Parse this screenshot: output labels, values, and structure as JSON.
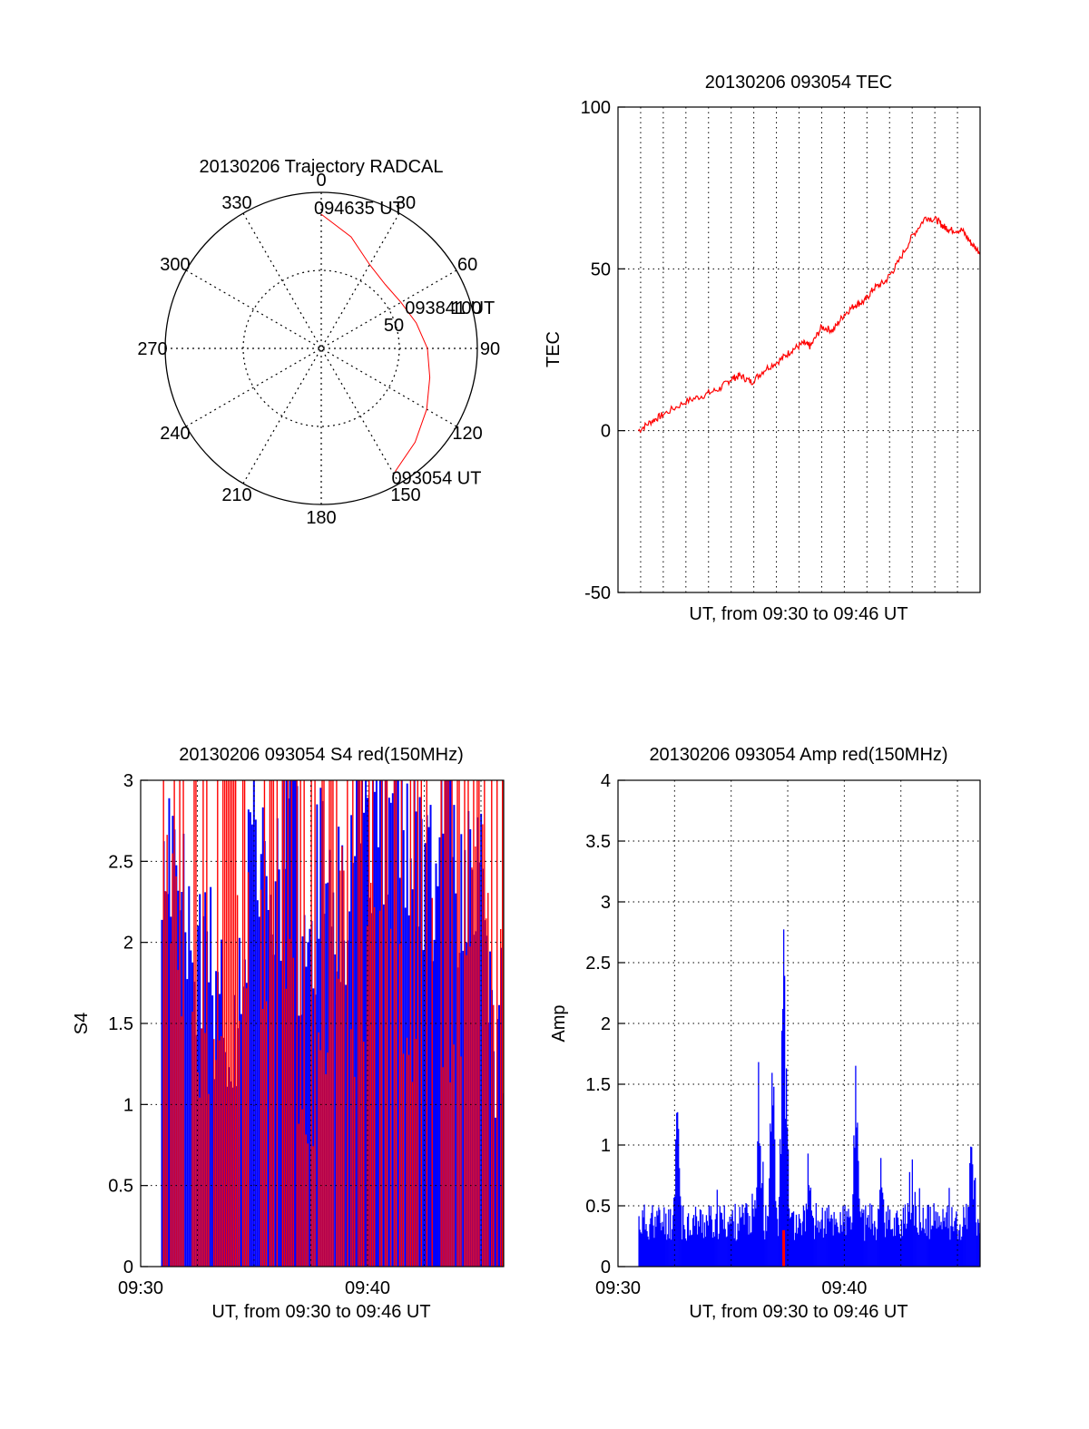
{
  "colors": {
    "primary": "#ff0000",
    "secondary": "#0000ff",
    "axis": "#000000",
    "grid": "#000000",
    "background": "#ffffff"
  },
  "chart_data": [
    {
      "id": "trajectory",
      "type": "polar",
      "title": "20130206 Trajectory RADCAL",
      "angle_labels": [
        "0",
        "30",
        "60",
        "90",
        "120",
        "150",
        "180",
        "210",
        "240",
        "270",
        "300",
        "330"
      ],
      "radius_labels": [
        "50",
        "100"
      ],
      "rlim": [
        0,
        100
      ],
      "grid": true,
      "series": [
        {
          "points": [
            {
              "az": 0,
              "r": 86
            },
            {
              "az": 15,
              "r": 74
            },
            {
              "az": 30,
              "r": 62
            },
            {
              "az": 45,
              "r": 58
            },
            {
              "az": 60,
              "r": 59
            },
            {
              "az": 75,
              "r": 63
            },
            {
              "az": 90,
              "r": 68
            },
            {
              "az": 105,
              "r": 72
            },
            {
              "az": 120,
              "r": 78
            },
            {
              "az": 135,
              "r": 85
            },
            {
              "az": 149,
              "r": 92
            }
          ]
        }
      ],
      "annotations": [
        {
          "text": "094635 UT",
          "az": 0,
          "r": 86
        },
        {
          "text": "093841 UT",
          "az": 78,
          "r": 62
        },
        {
          "text": "093054 UT",
          "az": 149,
          "r": 92
        }
      ]
    },
    {
      "id": "tec",
      "type": "line",
      "title": "20130206 093054 TEC",
      "xlabel": "UT, from 09:30 to 09:46 UT",
      "ylabel": "TEC",
      "ylim": [
        -50,
        100
      ],
      "yticks": [
        "-50",
        "0",
        "50",
        "100"
      ],
      "xlim": [
        0,
        16
      ],
      "xticks": [],
      "x_grid_minutes": [
        1,
        2,
        3,
        4,
        5,
        6,
        7,
        8,
        9,
        10,
        11,
        12,
        13,
        14,
        15
      ],
      "grid": true,
      "series": [
        {
          "x": [
            0.9,
            1.5,
            2,
            3,
            3.8,
            4.5,
            5,
            5.4,
            5.9,
            6.5,
            7.2,
            7.7,
            8.2,
            8.5,
            9,
            9.5,
            10,
            10.5,
            10.9,
            11.3,
            11.8,
            12.3,
            13,
            13.6,
            14.1,
            14.4,
            14.7,
            15.2,
            15.6,
            16
          ],
          "y": [
            0,
            3,
            5,
            9,
            11,
            13,
            16,
            17,
            15,
            19,
            22,
            25,
            27,
            26,
            32,
            31,
            36,
            39,
            40,
            44,
            46,
            51,
            60,
            66,
            65,
            63,
            62,
            62,
            58,
            55
          ]
        }
      ]
    },
    {
      "id": "s4",
      "type": "bar",
      "title": "20130206 093054 S4 red(150MHz)",
      "xlabel": "UT, from 09:30 to 09:46 UT",
      "ylabel": "S4",
      "ylim": [
        0,
        3
      ],
      "yticks": [
        "0",
        "0.5",
        "1",
        "1.5",
        "2",
        "2.5",
        "3"
      ],
      "xlim": [
        0,
        16
      ],
      "xticks": [
        "09:30",
        "09:40"
      ],
      "grid": true,
      "x_start": 0.05,
      "x_end": 16,
      "red_baseline": [
        3,
        1.6,
        1.5,
        1.6,
        2.4,
        2.6,
        2.5,
        2.3,
        1.1,
        1.5,
        2.6,
        1.5,
        2.9,
        2.1,
        1.5,
        2.6,
        1.4,
        2.0,
        2.8,
        2.4
      ],
      "blue_envelope": [
        2.1,
        1.9,
        1.6,
        1.2,
        1.3,
        2.3,
        2.0,
        2.6,
        1.5,
        2.1,
        1.9,
        2.6,
        2.3,
        2.4,
        2.2,
        2.0,
        2.5,
        2.0,
        2.2,
        1.1
      ],
      "series": [
        {
          "color": "red"
        },
        {
          "color": "blue"
        }
      ]
    },
    {
      "id": "amp",
      "type": "bar",
      "title": "20130206 093054 Amp red(150MHz)",
      "xlabel": "UT, from 09:30 to 09:46 UT",
      "ylabel": "Amp",
      "ylim": [
        0,
        4
      ],
      "yticks": [
        "0",
        "0.5",
        "1",
        "1.5",
        "2",
        "2.5",
        "3",
        "3.5",
        "4"
      ],
      "xlim": [
        0,
        16
      ],
      "xticks": [
        "09:30",
        "09:40"
      ],
      "grid": true,
      "x_start": 0.9,
      "x_end": 16,
      "baseline": 0.35,
      "peaks": [
        {
          "x": 2.6,
          "y": 1.75
        },
        {
          "x": 6.2,
          "y": 1.85
        },
        {
          "x": 6.8,
          "y": 2.1
        },
        {
          "x": 7.3,
          "y": 3.15
        },
        {
          "x": 8.4,
          "y": 1.1
        },
        {
          "x": 10.5,
          "y": 1.85
        },
        {
          "x": 11.6,
          "y": 1.0
        },
        {
          "x": 15.6,
          "y": 1.5
        }
      ],
      "red_spike": {
        "x": 7.3,
        "y": 0.3
      },
      "series": [
        {
          "color": "blue"
        },
        {
          "color": "red"
        }
      ]
    }
  ]
}
